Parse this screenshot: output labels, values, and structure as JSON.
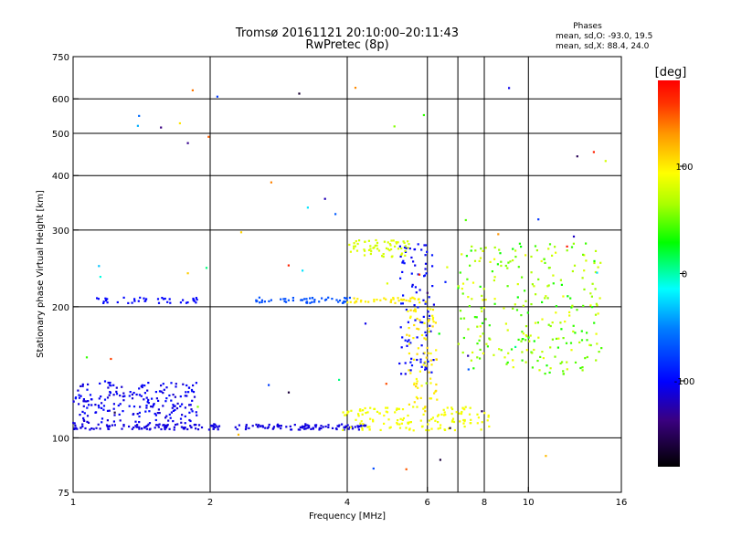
{
  "chart_data": {
    "type": "scatter",
    "title": "Tromsø 20161121 20:10:00–20:11:43",
    "subtitle": "RwPretec (8p)",
    "xlabel": "Frequency [MHz]",
    "ylabel": "Stationary phase Virtual Height [km]",
    "x_scale": "log",
    "y_scale": "log",
    "xlim": [
      1,
      16
    ],
    "ylim": [
      75,
      750
    ],
    "x_ticks": [
      1,
      2,
      4,
      6,
      8,
      10,
      16
    ],
    "x_tick_labels": [
      "1",
      "2",
      "4",
      "6",
      "8",
      "10",
      "16"
    ],
    "x_grid": [
      2,
      4,
      6,
      7,
      8,
      10
    ],
    "y_ticks": [
      75,
      100,
      200,
      300,
      400,
      500,
      600,
      750
    ],
    "y_tick_labels": [
      "75",
      "100",
      "200",
      "300",
      "400",
      "500",
      "600",
      "750"
    ],
    "y_grid": [
      100,
      200,
      300,
      400,
      500,
      600
    ],
    "grid": true,
    "legend": {
      "title": "Phases",
      "line1": "mean, sd,O:  -93.0, 19.5",
      "line2": "mean, sd,X:  88.4, 24.0"
    },
    "colorbar": {
      "label": "[deg]",
      "range": [
        -180,
        180
      ],
      "ticks": [
        100,
        0,
        -100
      ],
      "tick_labels": [
        "100",
        "0",
        "-100"
      ]
    },
    "traces": [
      {
        "name": "o-trace-E",
        "x_range": [
          1.0,
          4.4
        ],
        "y": 106,
        "phase": -110,
        "spread": 2,
        "count": 200
      },
      {
        "name": "o-trace-E-upper",
        "x_range": [
          1.0,
          1.9
        ],
        "y_range": [
          108,
          135
        ],
        "phase": -105,
        "spread": 10,
        "count": 200
      },
      {
        "name": "x-trace-E",
        "x_range": [
          3.9,
          8.2
        ],
        "y_range": [
          104,
          118
        ],
        "phase": 90,
        "spread": 4,
        "count": 140
      },
      {
        "name": "o-trace-F",
        "x_range": [
          1.1,
          1.9
        ],
        "y": 207,
        "phase": -100,
        "spread": 2,
        "count": 40
      },
      {
        "name": "o-trace-F2",
        "x_range": [
          2.5,
          4.2
        ],
        "y": 207,
        "phase": -70,
        "spread": 3,
        "count": 50
      },
      {
        "name": "x-trace-F",
        "x_range": [
          4.0,
          6.0
        ],
        "y": 207,
        "phase": 100,
        "spread": 3,
        "count": 40
      },
      {
        "name": "o-cusp-6",
        "x_range": [
          5.2,
          6.2
        ],
        "y_range": [
          140,
          280
        ],
        "phase": -100,
        "spread": 8,
        "count": 90
      },
      {
        "name": "x-cusp-6",
        "x_range": [
          5.4,
          6.3
        ],
        "y_range": [
          115,
          200
        ],
        "phase": 100,
        "spread": 10,
        "count": 80
      },
      {
        "name": "x-high",
        "x_range": [
          4.0,
          5.5
        ],
        "y_range": [
          260,
          285
        ],
        "phase": 80,
        "spread": 4,
        "count": 60
      },
      {
        "name": "mixed-8-12",
        "x_range": [
          7.0,
          14.5
        ],
        "y_range": [
          140,
          280
        ],
        "phase": 60,
        "spread": 30,
        "count": 260
      },
      {
        "name": "scattered",
        "x_range": [
          1.0,
          15.0
        ],
        "y_range": [
          80,
          640
        ],
        "phase": 0,
        "spread": 180,
        "count": 60
      }
    ]
  }
}
